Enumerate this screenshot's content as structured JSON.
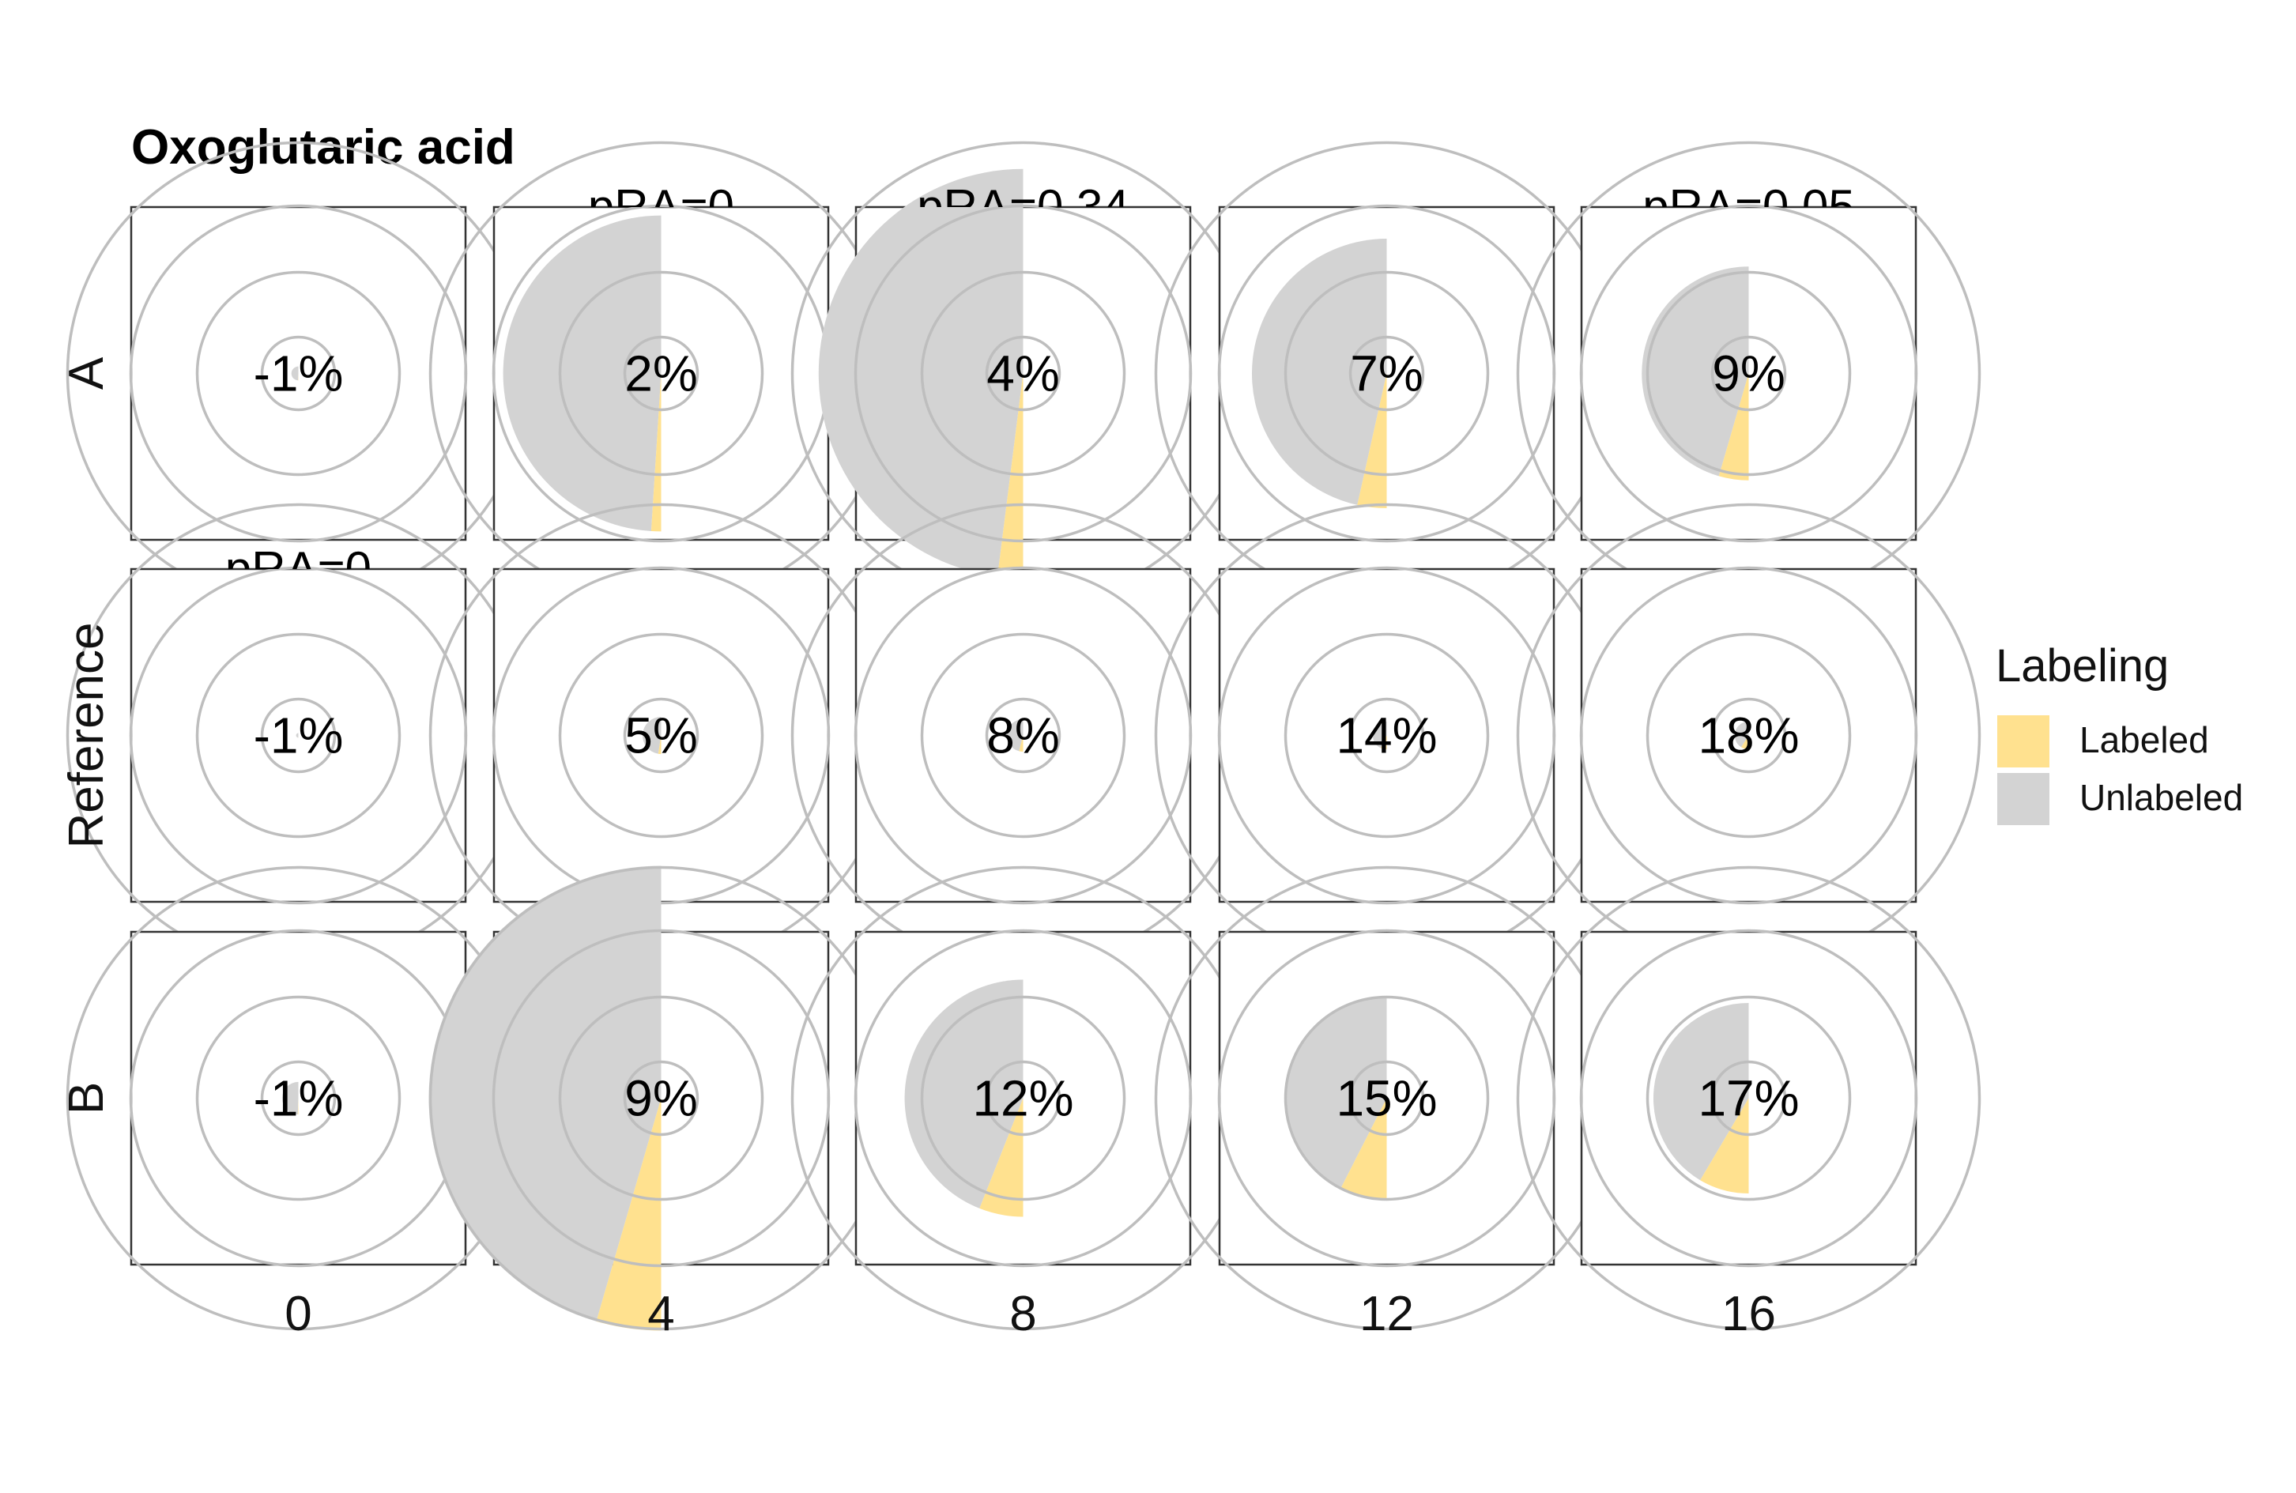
{
  "chart_data": {
    "type": "pie",
    "title": "Oxoglutaric acid",
    "columns": [
      "0",
      "4",
      "8",
      "12",
      "16"
    ],
    "rows": [
      "A",
      "Reference",
      "B"
    ],
    "legend": {
      "title": "Labeling",
      "placement": "right",
      "entries": [
        {
          "name": "Labeled",
          "color": "#FFE18F"
        },
        {
          "name": "Unlabeled",
          "color": "#D3D3D3"
        }
      ]
    },
    "top_labels": {
      "A": [
        "",
        "pRA=0",
        "pRA=0.34",
        "",
        "pRA=0.05"
      ],
      "Reference": [
        "pRA=0",
        "",
        "",
        "",
        ""
      ],
      "B": [
        "",
        "",
        "",
        "",
        ""
      ]
    },
    "panels": {
      "A": [
        {
          "label": "-1%",
          "labeled_pct": -1,
          "size": 0.03
        },
        {
          "label": "2%",
          "labeled_pct": 2,
          "size": 0.68
        },
        {
          "label": "4%",
          "labeled_pct": 4,
          "size": 0.88
        },
        {
          "label": "7%",
          "labeled_pct": 7,
          "size": 0.58
        },
        {
          "label": "9%",
          "labeled_pct": 9,
          "size": 0.46
        }
      ],
      "Reference": [
        {
          "label": "-1%",
          "labeled_pct": -1,
          "size": 0.01
        },
        {
          "label": "5%",
          "labeled_pct": 5,
          "size": 0.08
        },
        {
          "label": "8%",
          "labeled_pct": 8,
          "size": 0.07
        },
        {
          "label": "14%",
          "labeled_pct": 14,
          "size": 0.06
        },
        {
          "label": "18%",
          "labeled_pct": 18,
          "size": 0.06
        }
      ],
      "B": [
        {
          "label": "-1%",
          "labeled_pct": -1,
          "size": 0.07
        },
        {
          "label": "9%",
          "labeled_pct": 9,
          "size": 1.0
        },
        {
          "label": "12%",
          "labeled_pct": 12,
          "size": 0.51
        },
        {
          "label": "15%",
          "labeled_pct": 15,
          "size": 0.44
        },
        {
          "label": "17%",
          "labeled_pct": 17,
          "size": 0.41
        }
      ]
    },
    "grid": true,
    "grid_color": "#BEBEBE"
  }
}
